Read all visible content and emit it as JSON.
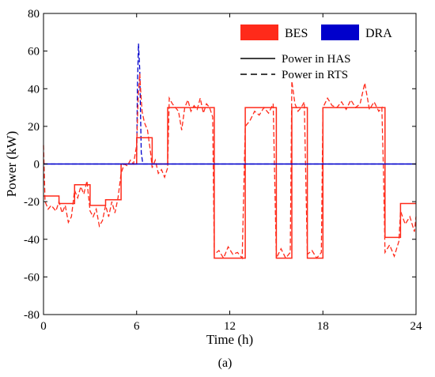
{
  "chart_data": {
    "type": "line",
    "xlabel": "Time (h)",
    "ylabel": "Power (kW)",
    "xlim": [
      0,
      24
    ],
    "ylim": [
      -80,
      80
    ],
    "xticks": [
      0,
      6,
      12,
      18,
      24
    ],
    "yticks": [
      -80,
      -60,
      -40,
      -20,
      0,
      20,
      40,
      60,
      80
    ],
    "grid": false,
    "legend": {
      "placement": "top-right",
      "patches": [
        {
          "label": "BES",
          "color": "#ff2a1a"
        },
        {
          "label": "DRA",
          "color": "#0000cc"
        }
      ],
      "lines": [
        {
          "label": "Power in HAS",
          "style": "solid"
        },
        {
          "label": "Power in RTS",
          "style": "dashed"
        }
      ]
    },
    "series": [
      {
        "name": "BES",
        "schedule": "HAS",
        "color": "#ff2a1a",
        "style": "solid",
        "points": [
          [
            0,
            -17
          ],
          [
            1,
            -17
          ],
          [
            1,
            -21
          ],
          [
            2,
            -21
          ],
          [
            2,
            -11
          ],
          [
            3,
            -11
          ],
          [
            3,
            -22
          ],
          [
            4,
            -22
          ],
          [
            4,
            -19
          ],
          [
            5,
            -19
          ],
          [
            5,
            0
          ],
          [
            6,
            0
          ],
          [
            6,
            14
          ],
          [
            7,
            14
          ],
          [
            7,
            0
          ],
          [
            8,
            0
          ],
          [
            8,
            30
          ],
          [
            11,
            30
          ],
          [
            11,
            -50
          ],
          [
            13,
            -50
          ],
          [
            13,
            30
          ],
          [
            15,
            30
          ],
          [
            15,
            -50
          ],
          [
            16,
            -50
          ],
          [
            16,
            30
          ],
          [
            17,
            30
          ],
          [
            17,
            -50
          ],
          [
            18,
            -50
          ],
          [
            18,
            30
          ],
          [
            22,
            30
          ],
          [
            22,
            -39
          ],
          [
            23,
            -39
          ],
          [
            23,
            -21
          ],
          [
            24,
            -21
          ]
        ]
      },
      {
        "name": "BES",
        "schedule": "RTS",
        "color": "#ff2a1a",
        "style": "dashed",
        "points": [
          [
            0,
            10
          ],
          [
            0.1,
            -20
          ],
          [
            0.3,
            -24
          ],
          [
            0.5,
            -22
          ],
          [
            0.8,
            -25
          ],
          [
            1,
            -20
          ],
          [
            1.2,
            -26
          ],
          [
            1.4,
            -22
          ],
          [
            1.6,
            -31
          ],
          [
            1.8,
            -28
          ],
          [
            2,
            -14
          ],
          [
            2.2,
            -18
          ],
          [
            2.4,
            -12
          ],
          [
            2.6,
            -16
          ],
          [
            2.8,
            -9
          ],
          [
            3,
            -25
          ],
          [
            3.2,
            -28
          ],
          [
            3.4,
            -24
          ],
          [
            3.6,
            -33
          ],
          [
            3.8,
            -30
          ],
          [
            4,
            -22
          ],
          [
            4.2,
            -28
          ],
          [
            4.4,
            -20
          ],
          [
            4.6,
            -26
          ],
          [
            4.8,
            -18
          ],
          [
            5,
            -5
          ],
          [
            5.2,
            0
          ],
          [
            5.4,
            -1
          ],
          [
            5.6,
            2
          ],
          [
            5.8,
            0
          ],
          [
            6,
            10
          ],
          [
            6.1,
            35
          ],
          [
            6.2,
            48
          ],
          [
            6.25,
            40
          ],
          [
            6.35,
            28
          ],
          [
            6.5,
            22
          ],
          [
            6.7,
            18
          ],
          [
            6.9,
            6
          ],
          [
            7,
            -2
          ],
          [
            7.2,
            2
          ],
          [
            7.4,
            -5
          ],
          [
            7.6,
            -3
          ],
          [
            7.8,
            -7
          ],
          [
            8,
            -2
          ],
          [
            8.1,
            35
          ],
          [
            8.3,
            32
          ],
          [
            8.5,
            30
          ],
          [
            8.7,
            28
          ],
          [
            8.9,
            18
          ],
          [
            9.1,
            30
          ],
          [
            9.3,
            34
          ],
          [
            9.5,
            28
          ],
          [
            9.7,
            31
          ],
          [
            9.9,
            29
          ],
          [
            10.1,
            35
          ],
          [
            10.3,
            27
          ],
          [
            10.5,
            32
          ],
          [
            10.7,
            30
          ],
          [
            10.9,
            25
          ],
          [
            11,
            -48
          ],
          [
            11.3,
            -46
          ],
          [
            11.6,
            -50
          ],
          [
            11.9,
            -44
          ],
          [
            12.2,
            -48
          ],
          [
            12.5,
            -47
          ],
          [
            12.8,
            -50
          ],
          [
            13,
            20
          ],
          [
            13.3,
            23
          ],
          [
            13.6,
            28
          ],
          [
            13.9,
            26
          ],
          [
            14.2,
            30
          ],
          [
            14.5,
            27
          ],
          [
            14.8,
            32
          ],
          [
            15,
            -50
          ],
          [
            15.3,
            -45
          ],
          [
            15.6,
            -50
          ],
          [
            15.9,
            -47
          ],
          [
            16,
            44
          ],
          [
            16.2,
            32
          ],
          [
            16.4,
            28
          ],
          [
            16.6,
            30
          ],
          [
            16.8,
            33
          ],
          [
            17,
            -48
          ],
          [
            17.3,
            -46
          ],
          [
            17.6,
            -50
          ],
          [
            17.9,
            -47
          ],
          [
            18,
            30
          ],
          [
            18.3,
            35
          ],
          [
            18.6,
            31
          ],
          [
            18.9,
            30
          ],
          [
            19.2,
            33
          ],
          [
            19.5,
            29
          ],
          [
            19.8,
            34
          ],
          [
            20.1,
            30
          ],
          [
            20.4,
            32
          ],
          [
            20.7,
            43
          ],
          [
            21,
            29
          ],
          [
            21.3,
            33
          ],
          [
            21.6,
            28
          ],
          [
            21.8,
            30
          ],
          [
            21.9,
            -3
          ],
          [
            22,
            -47
          ],
          [
            22.3,
            -43
          ],
          [
            22.6,
            -49
          ],
          [
            22.9,
            -41
          ],
          [
            23,
            -25
          ],
          [
            23.3,
            -32
          ],
          [
            23.6,
            -28
          ],
          [
            23.9,
            -36
          ],
          [
            24,
            -28
          ]
        ]
      },
      {
        "name": "DRA",
        "schedule": "HAS",
        "color": "#0000cc",
        "style": "solid",
        "points": [
          [
            0,
            0
          ],
          [
            24,
            0
          ]
        ]
      },
      {
        "name": "DRA",
        "schedule": "RTS",
        "color": "#0000cc",
        "style": "dashed",
        "points": [
          [
            0,
            0
          ],
          [
            6,
            0
          ],
          [
            6.05,
            40
          ],
          [
            6.12,
            64
          ],
          [
            6.2,
            50
          ],
          [
            6.3,
            6
          ],
          [
            6.4,
            0
          ],
          [
            24,
            0
          ]
        ]
      }
    ]
  },
  "caption": "(a)"
}
